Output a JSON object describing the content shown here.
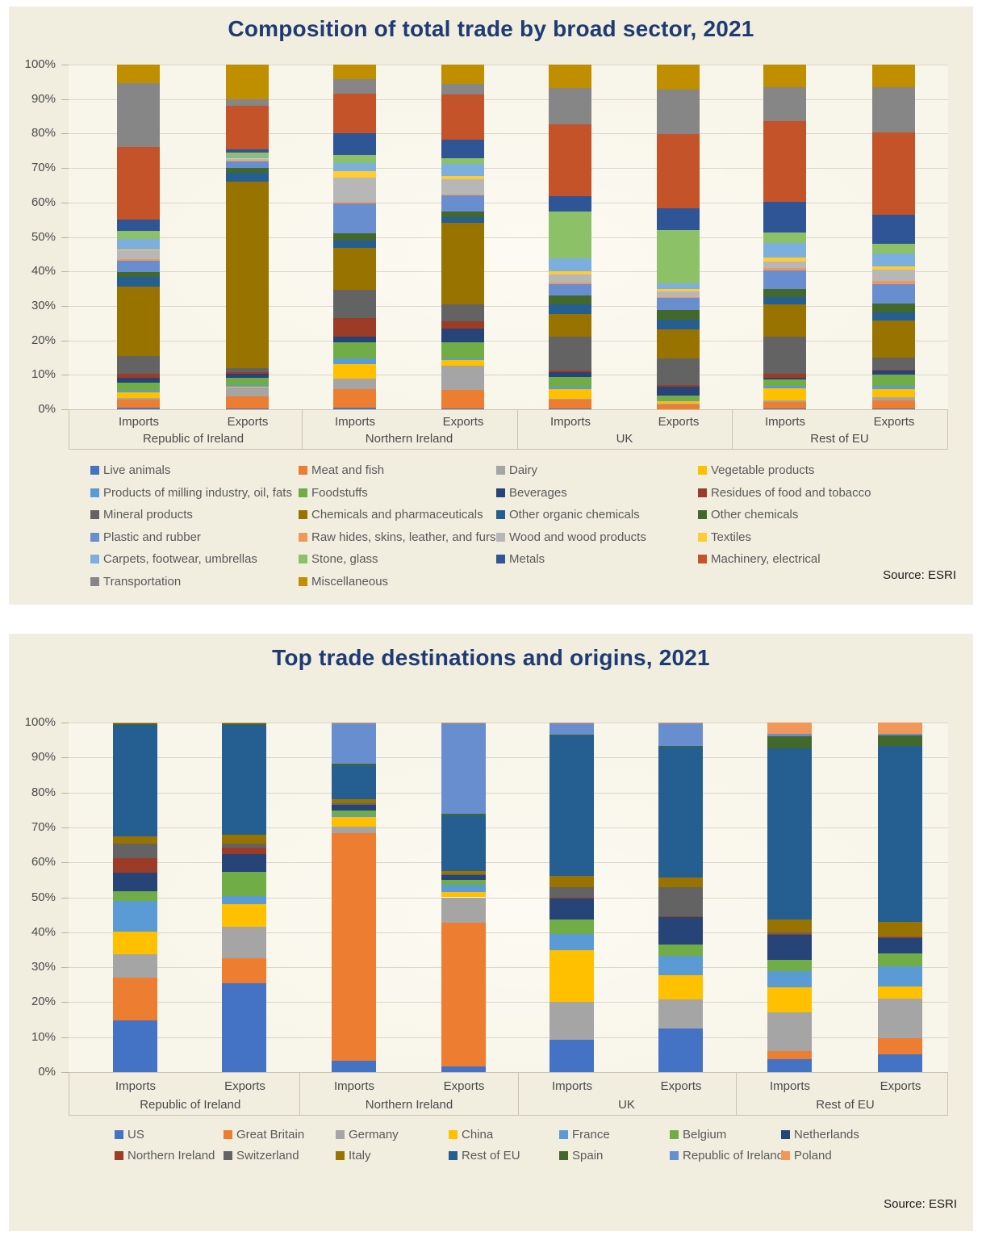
{
  "chart_data": [
    {
      "type": "bar",
      "variant": "stacked-100-percent",
      "title": "Composition of total trade by broad sector, 2021",
      "source": "Source: ESRI",
      "grid": true,
      "legend_position": "bottom",
      "ylim": [
        0,
        100
      ],
      "y_ticks": [
        "100%",
        "90%",
        "80%",
        "70%",
        "60%",
        "50%",
        "40%",
        "30%",
        "20%",
        "10%",
        "0%"
      ],
      "groups": [
        "Republic of Ireland",
        "Northern Ireland",
        "UK",
        "Rest of EU"
      ],
      "bar_labels": [
        "Imports",
        "Exports"
      ],
      "categories": [
        "Republic of Ireland Imports",
        "Republic of Ireland Exports",
        "Northern Ireland Imports",
        "Northern Ireland Exports",
        "UK Imports",
        "UK Exports",
        "Rest of EU Imports",
        "Rest of EU Exports"
      ],
      "values_unit": "percent of total trade",
      "series": [
        {
          "name": "Live animals",
          "color": "#4472C4",
          "values": [
            0.5,
            0.3,
            0.5,
            0.3,
            0.2,
            0.1,
            0.2,
            0.2
          ]
        },
        {
          "name": "Meat and fish",
          "color": "#ED7D31",
          "values": [
            2.4,
            3.5,
            5.3,
            5.3,
            2.6,
            1.4,
            2.0,
            2.4
          ]
        },
        {
          "name": "Dairy",
          "color": "#A5A5A5",
          "values": [
            0.4,
            2.5,
            3.1,
            7.0,
            0.2,
            0.2,
            0.3,
            0.9
          ]
        },
        {
          "name": "Vegetable products",
          "color": "#FFC000",
          "values": [
            1.6,
            0.3,
            4.2,
            1.7,
            2.9,
            0.6,
            3.5,
            2.4
          ]
        },
        {
          "name": "Products of milling industry, oil, fats",
          "color": "#5B9BD5",
          "values": [
            0.5,
            0.5,
            1.8,
            0.5,
            0.8,
            0.3,
            0.9,
            1.0
          ]
        },
        {
          "name": "Foodstuffs",
          "color": "#70AD47",
          "values": [
            2.4,
            2.0,
            4.5,
            4.5,
            2.8,
            1.3,
            1.8,
            3.1
          ]
        },
        {
          "name": "Beverages",
          "color": "#264478",
          "values": [
            1.3,
            1.2,
            1.8,
            4.0,
            1.3,
            2.6,
            0.5,
            1.2
          ]
        },
        {
          "name": "Residues of food and tobacco",
          "color": "#9C3B26",
          "values": [
            1.3,
            0.5,
            5.3,
            2.2,
            0.6,
            0.5,
            1.2,
            0.4
          ]
        },
        {
          "name": "Mineral products",
          "color": "#636363",
          "values": [
            5.1,
            1.0,
            8.2,
            4.8,
            9.7,
            7.9,
            10.7,
            3.5
          ]
        },
        {
          "name": "Chemicals and pharmaceuticals",
          "color": "#997300",
          "values": [
            20.0,
            54.0,
            12.2,
            23.5,
            6.7,
            8.4,
            9.4,
            10.6
          ]
        },
        {
          "name": "Other organic chemicals",
          "color": "#255E91",
          "values": [
            2.9,
            2.5,
            2.1,
            1.7,
            2.8,
            2.8,
            2.1,
            2.4
          ]
        },
        {
          "name": "Other chemicals",
          "color": "#43682B",
          "values": [
            1.4,
            1.5,
            2.2,
            1.6,
            2.6,
            2.9,
            2.4,
            2.7
          ]
        },
        {
          "name": "Plastic and rubber",
          "color": "#698ED0",
          "values": [
            3.3,
            1.8,
            8.8,
            4.7,
            3.3,
            3.5,
            5.5,
            5.5
          ]
        },
        {
          "name": "Raw hides, skins, leather, and furs",
          "color": "#F1975A",
          "values": [
            0.5,
            0.2,
            0.3,
            0.3,
            0.4,
            0.3,
            0.5,
            0.9
          ]
        },
        {
          "name": "Wood and wood products",
          "color": "#B7B7B7",
          "values": [
            2.5,
            0.5,
            7.2,
            4.4,
            2.4,
            1.7,
            2.1,
            3.4
          ]
        },
        {
          "name": "Textiles",
          "color": "#FFCD33",
          "values": [
            0.3,
            0.3,
            1.7,
            0.8,
            1.0,
            0.6,
            1.0,
            1.0
          ]
        },
        {
          "name": "Carpets, footwear, umbrellas",
          "color": "#7CAFDD",
          "values": [
            3.1,
            0.5,
            2.5,
            3.6,
            3.7,
            1.6,
            4.2,
            3.7
          ]
        },
        {
          "name": "Stone, glass",
          "color": "#8CC168",
          "values": [
            2.2,
            1.0,
            2.4,
            1.6,
            13.6,
            15.7,
            3.1,
            2.7
          ]
        },
        {
          "name": "Metals",
          "color": "#2F5597",
          "values": [
            3.3,
            1.0,
            6.3,
            5.5,
            4.5,
            6.3,
            8.9,
            8.6
          ]
        },
        {
          "name": "Machinery, electrical",
          "color": "#C5532A",
          "values": [
            21.0,
            12.5,
            11.5,
            13.0,
            20.9,
            21.7,
            23.5,
            23.9
          ]
        },
        {
          "name": "Transportation",
          "color": "#868686",
          "values": [
            18.7,
            2.0,
            4.2,
            2.9,
            10.6,
            13.0,
            10.0,
            13.1
          ]
        },
        {
          "name": "Miscellaneous",
          "color": "#BF8F00",
          "values": [
            5.3,
            10.0,
            4.2,
            5.7,
            6.9,
            7.2,
            6.5,
            6.5
          ]
        }
      ]
    },
    {
      "type": "bar",
      "variant": "stacked-100-percent",
      "title": "Top trade destinations and origins, 2021",
      "source": "Source: ESRI",
      "grid": true,
      "legend_position": "bottom",
      "ylim": [
        0,
        100
      ],
      "y_ticks": [
        "100%",
        "90%",
        "80%",
        "70%",
        "60%",
        "50%",
        "40%",
        "30%",
        "20%",
        "10%",
        "0%"
      ],
      "groups": [
        "Republic of Ireland",
        "Northern Ireland",
        "UK",
        "Rest of EU"
      ],
      "bar_labels": [
        "Imports",
        "Exports"
      ],
      "categories": [
        "Republic of Ireland Imports",
        "Republic of Ireland Exports",
        "Northern Ireland Imports",
        "Northern Ireland Exports",
        "UK Imports",
        "UK Exports",
        "Rest of EU Imports",
        "Rest of EU Exports"
      ],
      "values_unit": "percent of total trade",
      "series": [
        {
          "name": "US",
          "color": "#4472C4",
          "values": [
            14.8,
            25.5,
            3.3,
            1.6,
            9.2,
            12.5,
            3.8,
            5.2
          ]
        },
        {
          "name": "Great Britain",
          "color": "#ED7D31",
          "values": [
            12.5,
            7.3,
            65.4,
            41.5,
            0,
            0,
            2.2,
            4.6
          ]
        },
        {
          "name": "Germany",
          "color": "#A5A5A5",
          "values": [
            6.7,
            9.2,
            1.9,
            7.3,
            11.0,
            8.5,
            11.3,
            11.3
          ]
        },
        {
          "name": "China",
          "color": "#FFC000",
          "values": [
            6.4,
            6.5,
            2.7,
            1.6,
            15.0,
            6.9,
            7.3,
            3.6
          ]
        },
        {
          "name": "France",
          "color": "#5B9BD5",
          "values": [
            9.0,
            2.3,
            0.6,
            1.9,
            4.6,
            5.6,
            4.5,
            5.8
          ]
        },
        {
          "name": "Belgium",
          "color": "#70AD47",
          "values": [
            2.8,
            6.9,
            1.2,
            1.5,
            4.3,
            3.4,
            3.4,
            3.6
          ]
        },
        {
          "name": "Netherlands",
          "color": "#264478",
          "values": [
            5.2,
            5.2,
            1.8,
            1.4,
            5.9,
            7.9,
            7.2,
            4.4
          ]
        },
        {
          "name": "Northern Ireland",
          "color": "#9C3B26",
          "values": [
            4.2,
            1.8,
            0,
            0,
            0.3,
            0.2,
            0.2,
            0.2
          ]
        },
        {
          "name": "Switzerland",
          "color": "#636363",
          "values": [
            4.2,
            1.2,
            0.3,
            0.3,
            3.1,
            8.5,
            0.5,
            0.3
          ]
        },
        {
          "name": "Italy",
          "color": "#997300",
          "values": [
            2.2,
            2.5,
            1.2,
            0.9,
            3.1,
            2.8,
            3.8,
            4.3
          ]
        },
        {
          "name": "Rest of EU",
          "color": "#255E91",
          "values": [
            32.0,
            31.8,
            9.8,
            16.0,
            40.5,
            37.7,
            49.5,
            50.5
          ]
        },
        {
          "name": "Spain",
          "color": "#43682B",
          "values": [
            0.4,
            0.3,
            0.5,
            0.6,
            0.4,
            0.3,
            3.4,
            3.1
          ]
        },
        {
          "name": "Republic of Ireland",
          "color": "#698ED0",
          "values": [
            0,
            0,
            11.5,
            25.9,
            3.1,
            6.4,
            0.8,
            0.4
          ]
        },
        {
          "name": "Poland",
          "color": "#F1975A",
          "values": [
            0.3,
            0.3,
            0.3,
            0.3,
            0.3,
            0.3,
            3.2,
            3.3
          ]
        }
      ]
    }
  ]
}
